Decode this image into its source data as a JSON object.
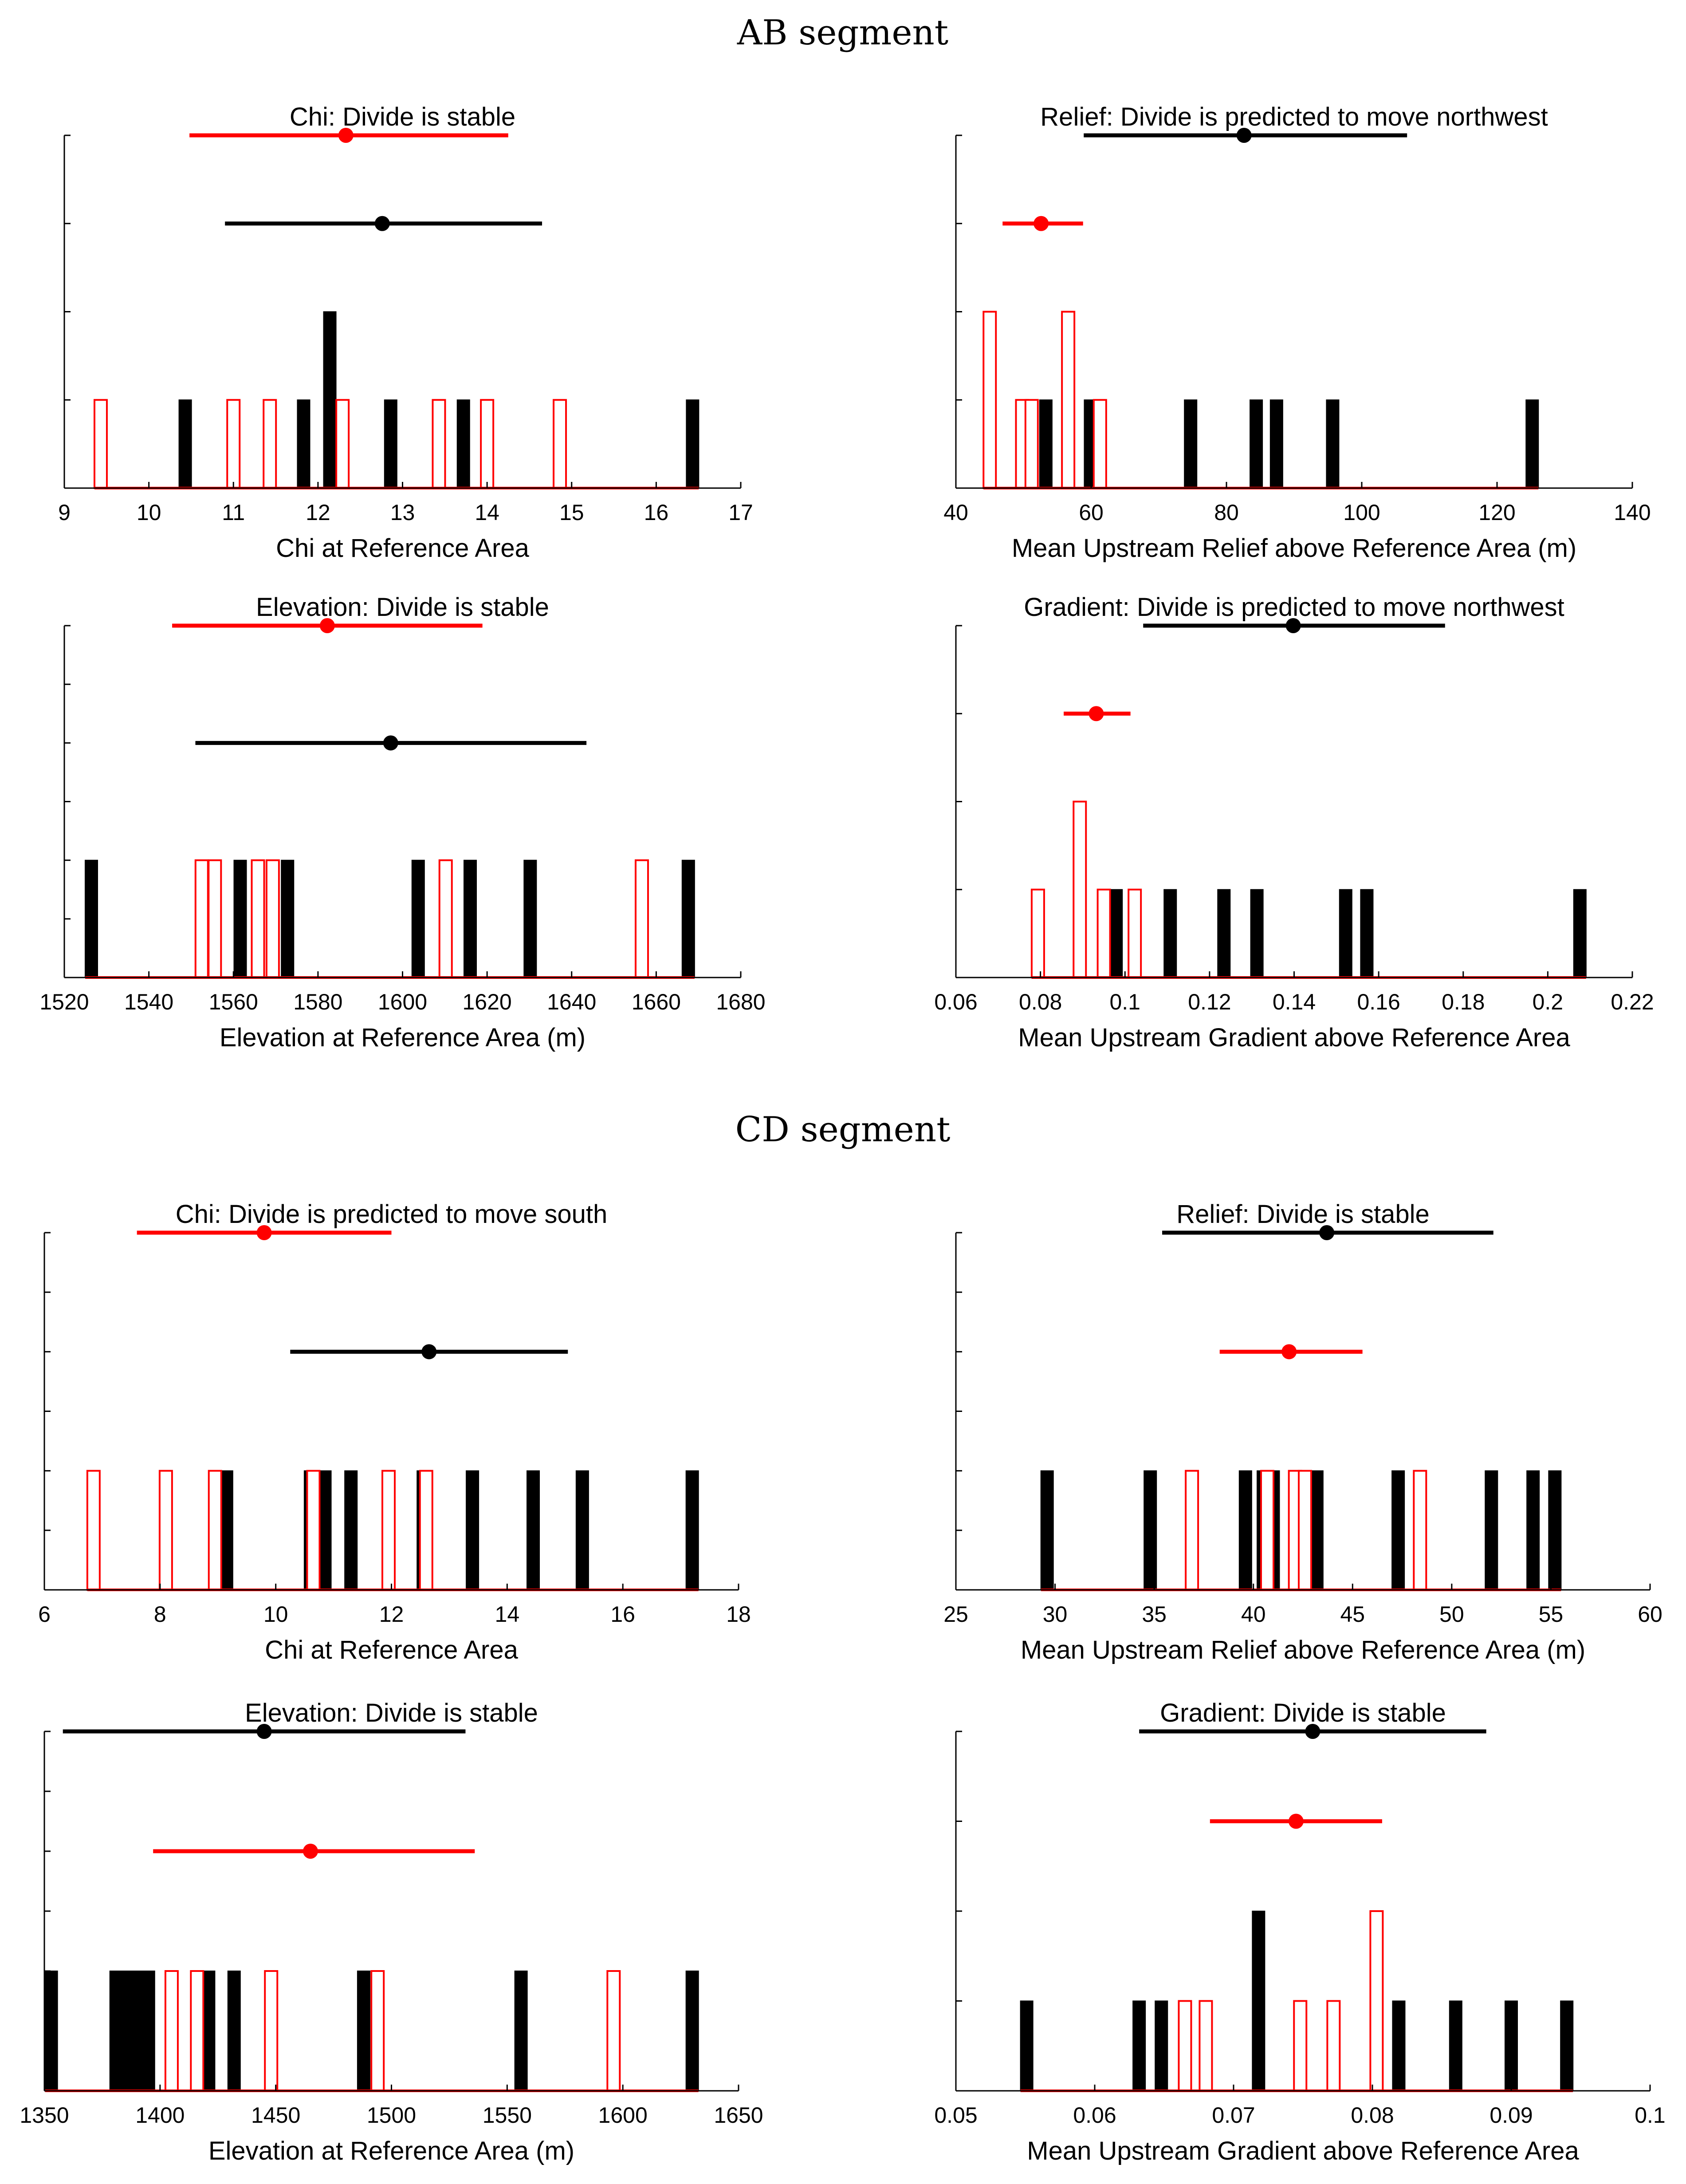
{
  "chart_data": [
    {
      "id": "ab-chi",
      "segment": "AB segment",
      "type": "histogram",
      "title": "Chi: Divide is stable",
      "xlabel": "Chi at Reference Area",
      "xlim": [
        9,
        17
      ],
      "xticks": [
        9,
        10,
        11,
        12,
        13,
        14,
        15,
        16,
        17
      ],
      "ymax": 4,
      "black": {
        "bars": [
          {
            "x": 10.43,
            "count": 1
          },
          {
            "x": 11.83,
            "count": 1
          },
          {
            "x": 12.14,
            "count": 2
          },
          {
            "x": 12.86,
            "count": 1
          },
          {
            "x": 13.72,
            "count": 1
          },
          {
            "x": 16.43,
            "count": 1
          }
        ],
        "mean": 12.76,
        "range": [
          10.9,
          14.65
        ]
      },
      "red": {
        "bars": [
          {
            "x": 9.43,
            "count": 1
          },
          {
            "x": 11.0,
            "count": 1
          },
          {
            "x": 11.43,
            "count": 1
          },
          {
            "x": 12.29,
            "count": 1
          },
          {
            "x": 13.43,
            "count": 1
          },
          {
            "x": 14.0,
            "count": 1
          },
          {
            "x": 14.86,
            "count": 1
          }
        ],
        "mean": 12.33,
        "range": [
          10.48,
          14.25
        ]
      }
    },
    {
      "id": "ab-relief",
      "segment": "AB segment",
      "type": "histogram",
      "title": "Relief: Divide is predicted to move northwest",
      "xlabel": "Mean Upstream Relief above Reference Area (m)",
      "xlim": [
        40,
        140
      ],
      "xticks": [
        40,
        60,
        80,
        100,
        120,
        140
      ],
      "ymax": 4,
      "black": {
        "bars": [
          {
            "x": 53.3,
            "count": 1
          },
          {
            "x": 59.9,
            "count": 1
          },
          {
            "x": 74.7,
            "count": 1
          },
          {
            "x": 84.4,
            "count": 1
          },
          {
            "x": 87.4,
            "count": 1
          },
          {
            "x": 95.7,
            "count": 1
          },
          {
            "x": 125.2,
            "count": 1
          }
        ],
        "mean": 82.6,
        "range": [
          58.9,
          106.7
        ]
      },
      "red": {
        "bars": [
          {
            "x": 45.0,
            "count": 2
          },
          {
            "x": 49.8,
            "count": 1
          },
          {
            "x": 51.2,
            "count": 1
          },
          {
            "x": 56.6,
            "count": 2
          },
          {
            "x": 61.3,
            "count": 1
          }
        ],
        "mean": 52.6,
        "range": [
          46.9,
          58.8
        ]
      }
    },
    {
      "id": "ab-elevation",
      "segment": "AB segment",
      "type": "histogram",
      "title": "Elevation: Divide is stable",
      "xlabel": "Elevation at Reference Area (m)",
      "xlim": [
        1520,
        1680
      ],
      "xticks": [
        1520,
        1540,
        1560,
        1580,
        1600,
        1620,
        1640,
        1660,
        1680
      ],
      "ymax": 6,
      "black": {
        "bars": [
          {
            "x": 1526.4,
            "count": 2
          },
          {
            "x": 1561.6,
            "count": 2
          },
          {
            "x": 1572.8,
            "count": 2
          },
          {
            "x": 1603.7,
            "count": 2
          },
          {
            "x": 1616.0,
            "count": 2
          },
          {
            "x": 1630.2,
            "count": 2
          },
          {
            "x": 1667.6,
            "count": 2
          }
        ],
        "mean": 1597.2,
        "range": [
          1551.0,
          1643.5
        ]
      },
      "red": {
        "bars": [
          {
            "x": 1552.5,
            "count": 2
          },
          {
            "x": 1555.6,
            "count": 2
          },
          {
            "x": 1565.8,
            "count": 2
          },
          {
            "x": 1569.3,
            "count": 2
          },
          {
            "x": 1610.2,
            "count": 2
          },
          {
            "x": 1656.6,
            "count": 2
          }
        ],
        "mean": 1582.2,
        "range": [
          1545.5,
          1618.9
        ]
      }
    },
    {
      "id": "ab-gradient",
      "segment": "AB segment",
      "type": "histogram",
      "title": "Gradient: Divide is predicted to move northwest",
      "xlabel": "Mean Upstream Gradient above Reference Area",
      "xlim": [
        0.06,
        0.22
      ],
      "xticks": [
        0.06,
        0.08,
        0.1,
        0.12,
        0.14,
        0.16,
        0.18,
        0.2,
        0.22
      ],
      "ymax": 4,
      "black": {
        "bars": [
          {
            "x": 0.0979,
            "count": 1
          },
          {
            "x": 0.1107,
            "count": 1
          },
          {
            "x": 0.1234,
            "count": 1
          },
          {
            "x": 0.1312,
            "count": 1
          },
          {
            "x": 0.1522,
            "count": 1
          },
          {
            "x": 0.1572,
            "count": 1
          },
          {
            "x": 0.2076,
            "count": 1
          }
        ],
        "mean": 0.1398,
        "range": [
          0.1043,
          0.1757
        ]
      },
      "red": {
        "bars": [
          {
            "x": 0.0794,
            "count": 1
          },
          {
            "x": 0.0893,
            "count": 2
          },
          {
            "x": 0.095,
            "count": 1
          },
          {
            "x": 0.1023,
            "count": 1
          }
        ],
        "mean": 0.0932,
        "range": [
          0.0855,
          0.1013
        ]
      }
    },
    {
      "id": "cd-chi",
      "segment": "CD segment",
      "type": "histogram",
      "title": "Chi: Divide is predicted to move south",
      "xlabel": "Chi at Reference Area",
      "xlim": [
        6,
        18
      ],
      "xticks": [
        6,
        8,
        10,
        12,
        14,
        16,
        18
      ],
      "ymax": 6,
      "black": {
        "bars": [
          {
            "x": 9.15,
            "count": 2
          },
          {
            "x": 10.6,
            "count": 2
          },
          {
            "x": 10.85,
            "count": 2
          },
          {
            "x": 11.3,
            "count": 2
          },
          {
            "x": 11.95,
            "count": 2
          },
          {
            "x": 12.55,
            "count": 2
          },
          {
            "x": 13.4,
            "count": 2
          },
          {
            "x": 14.45,
            "count": 2
          },
          {
            "x": 15.3,
            "count": 2
          },
          {
            "x": 17.2,
            "count": 2
          }
        ],
        "mean": 12.65,
        "range": [
          10.25,
          15.05
        ]
      },
      "red": {
        "bars": [
          {
            "x": 6.85,
            "count": 2
          },
          {
            "x": 8.1,
            "count": 2
          },
          {
            "x": 8.95,
            "count": 2
          },
          {
            "x": 10.65,
            "count": 2
          },
          {
            "x": 11.95,
            "count": 2
          },
          {
            "x": 12.6,
            "count": 2
          }
        ],
        "mean": 9.8,
        "range": [
          7.6,
          12.0
        ]
      }
    },
    {
      "id": "cd-relief",
      "segment": "CD segment",
      "type": "histogram",
      "title": "Relief: Divide is stable",
      "xlabel": "Mean Upstream Relief above Reference Area (m)",
      "xlim": [
        25,
        60
      ],
      "xticks": [
        25,
        30,
        35,
        40,
        45,
        50,
        55,
        60
      ],
      "ymax": 6,
      "black": {
        "bars": [
          {
            "x": 29.6,
            "count": 2
          },
          {
            "x": 34.8,
            "count": 2
          },
          {
            "x": 39.6,
            "count": 2
          },
          {
            "x": 40.5,
            "count": 2
          },
          {
            "x": 41.0,
            "count": 2
          },
          {
            "x": 43.2,
            "count": 2
          },
          {
            "x": 47.3,
            "count": 2
          },
          {
            "x": 52.0,
            "count": 2
          },
          {
            "x": 54.1,
            "count": 2
          },
          {
            "x": 55.2,
            "count": 2
          }
        ],
        "mean": 43.7,
        "range": [
          35.4,
          52.1
        ]
      },
      "red": {
        "bars": [
          {
            "x": 36.9,
            "count": 2
          },
          {
            "x": 40.7,
            "count": 2
          },
          {
            "x": 42.1,
            "count": 2
          },
          {
            "x": 42.6,
            "count": 2
          },
          {
            "x": 48.4,
            "count": 2
          }
        ],
        "mean": 41.8,
        "range": [
          38.3,
          45.5
        ]
      }
    },
    {
      "id": "cd-elevation",
      "segment": "CD segment",
      "type": "histogram",
      "title": "Elevation: Divide is stable",
      "xlabel": "Elevation at Reference Area (m)",
      "xlim": [
        1350,
        1650
      ],
      "xticks": [
        1350,
        1400,
        1450,
        1500,
        1550,
        1600,
        1650
      ],
      "ymax": 6,
      "black": {
        "bars": [
          {
            "x": 1353,
            "count": 2
          },
          {
            "x": 1381,
            "count": 2
          },
          {
            "x": 1386,
            "count": 2
          },
          {
            "x": 1390,
            "count": 2
          },
          {
            "x": 1395,
            "count": 2
          },
          {
            "x": 1416,
            "count": 2
          },
          {
            "x": 1421,
            "count": 2
          },
          {
            "x": 1432,
            "count": 2
          },
          {
            "x": 1488,
            "count": 2
          },
          {
            "x": 1556,
            "count": 2
          },
          {
            "x": 1630,
            "count": 2
          }
        ],
        "mean": 1445,
        "range": [
          1358,
          1532
        ]
      },
      "red": {
        "bars": [
          {
            "x": 1405,
            "count": 2
          },
          {
            "x": 1416,
            "count": 2
          },
          {
            "x": 1448,
            "count": 2
          },
          {
            "x": 1494,
            "count": 2
          },
          {
            "x": 1596,
            "count": 2
          }
        ],
        "mean": 1465,
        "range": [
          1397,
          1536
        ]
      }
    },
    {
      "id": "cd-gradient",
      "segment": "CD segment",
      "type": "histogram",
      "title": "Gradient: Divide is stable",
      "xlabel": "Mean Upstream Gradient above Reference Area",
      "xlim": [
        0.05,
        0.1
      ],
      "xticks": [
        0.05,
        0.06,
        0.07,
        0.08,
        0.09,
        0.1
      ],
      "ymax": 4,
      "black": {
        "bars": [
          {
            "x": 0.0551,
            "count": 1
          },
          {
            "x": 0.0632,
            "count": 1
          },
          {
            "x": 0.0648,
            "count": 1
          },
          {
            "x": 0.0718,
            "count": 2
          },
          {
            "x": 0.0803,
            "count": 1
          },
          {
            "x": 0.0819,
            "count": 1
          },
          {
            "x": 0.086,
            "count": 1
          },
          {
            "x": 0.09,
            "count": 1
          },
          {
            "x": 0.094,
            "count": 1
          }
        ],
        "mean": 0.0757,
        "range": [
          0.0632,
          0.0882
        ]
      },
      "red": {
        "bars": [
          {
            "x": 0.0665,
            "count": 1
          },
          {
            "x": 0.068,
            "count": 1
          },
          {
            "x": 0.0748,
            "count": 1
          },
          {
            "x": 0.0772,
            "count": 1
          },
          {
            "x": 0.0803,
            "count": 2
          }
        ],
        "mean": 0.0745,
        "range": [
          0.0683,
          0.0807
        ]
      }
    }
  ],
  "segments": {
    "ab": "AB segment",
    "cd": "CD segment"
  }
}
